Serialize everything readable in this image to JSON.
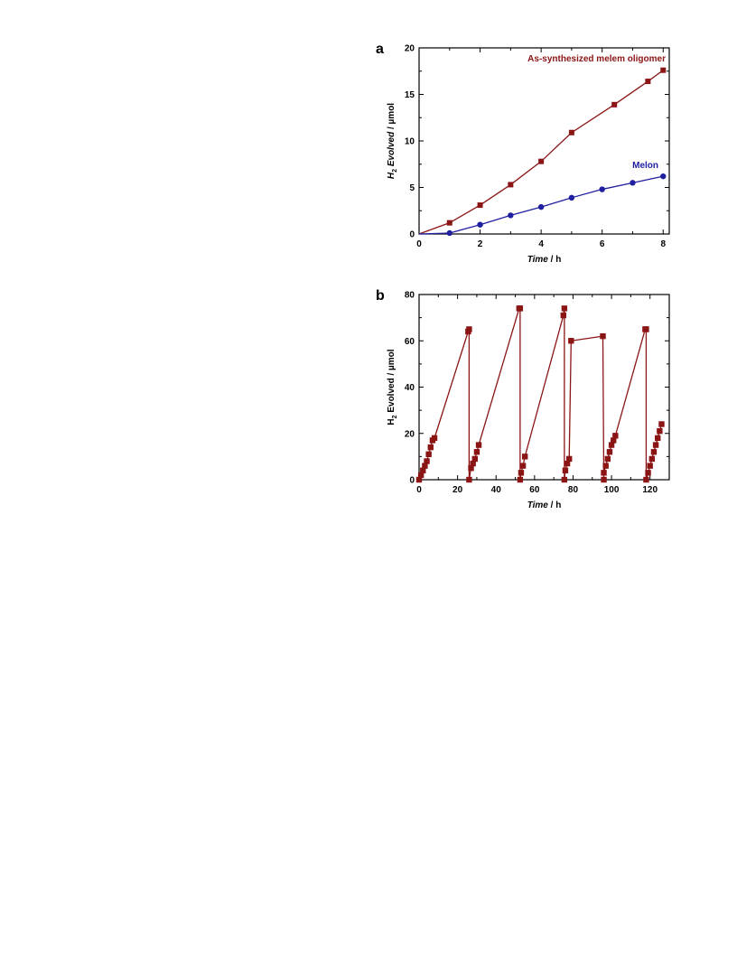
{
  "colors": {
    "oligomer": "#8b1414",
    "melon": "#1f1fa0",
    "axis": "#000000"
  },
  "chart_data": [
    {
      "panel": "a",
      "type": "line",
      "xlabel_italic": "Time",
      "xlabel_rest": " / h",
      "ylabel_sym": "H",
      "ylabel_sub": "2",
      "ylabel_italic": " Evolved",
      "ylabel_rest": " / µmol",
      "xlim": [
        0,
        8.2
      ],
      "ylim": [
        0,
        20
      ],
      "xticks": [
        0,
        2,
        4,
        6,
        8
      ],
      "yticks": [
        0,
        5,
        10,
        15,
        20
      ],
      "series": [
        {
          "name": "As-synthesized melem oligomer",
          "color": "#8b1414",
          "marker": "square",
          "x": [
            0,
            1,
            2,
            3,
            4,
            5,
            6.4,
            7.5,
            8
          ],
          "y": [
            0,
            1.2,
            3.1,
            5.3,
            7.8,
            10.9,
            13.9,
            16.4,
            17.6
          ]
        },
        {
          "name": "Melon",
          "color": "#1f1fa0",
          "marker": "circle",
          "x": [
            0,
            1,
            2,
            3,
            4,
            5,
            6,
            7,
            8
          ],
          "y": [
            0,
            0.1,
            1.0,
            2.0,
            2.9,
            3.9,
            4.8,
            5.5,
            6.2
          ]
        }
      ]
    },
    {
      "panel": "b",
      "type": "line",
      "xlabel_italic": "Time",
      "xlabel_rest": " / h",
      "ylabel_sym": "H",
      "ylabel_sub": "2",
      "ylabel_italic": "",
      "ylabel_rest": " Evolved / µmol",
      "xlim": [
        0,
        130
      ],
      "ylim": [
        0,
        80
      ],
      "xticks": [
        0,
        20,
        40,
        60,
        80,
        100,
        120
      ],
      "yticks": [
        0,
        20,
        40,
        60,
        80
      ],
      "series": [
        {
          "name": "",
          "color": "#8b1414",
          "marker": "square",
          "x": [
            0,
            1,
            2,
            3,
            4,
            5,
            6,
            7,
            8,
            25.5,
            26,
            26,
            27,
            28,
            29,
            30,
            31,
            52,
            52.5,
            52.5,
            53,
            54,
            55,
            75,
            75.5,
            75.5,
            76,
            77,
            78,
            79,
            95.5,
            96,
            96,
            97,
            98,
            99,
            100,
            101,
            102,
            117.5,
            118,
            118,
            119,
            120,
            121,
            122,
            123,
            124,
            125,
            126
          ],
          "y": [
            0,
            2,
            4,
            6,
            8,
            11,
            14,
            17,
            18,
            64,
            65,
            0,
            5,
            7,
            9,
            12,
            15,
            74,
            74,
            0,
            3,
            6,
            10,
            71,
            74,
            0,
            4,
            7,
            9,
            60,
            62,
            0,
            3,
            6,
            9,
            12,
            15,
            17,
            19,
            65,
            65,
            0,
            3,
            6,
            9,
            12,
            15,
            18,
            21,
            24
          ]
        }
      ]
    }
  ]
}
